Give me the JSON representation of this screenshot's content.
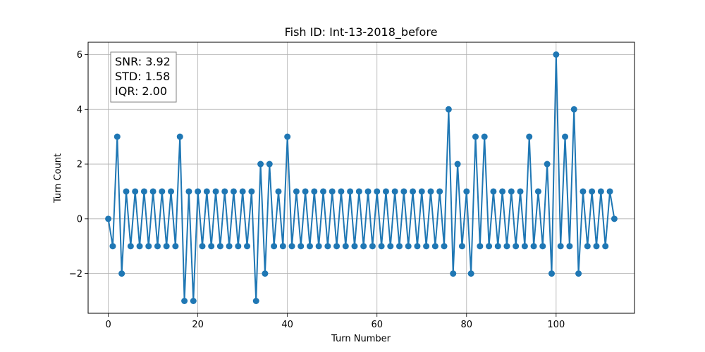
{
  "chart_data": {
    "type": "line",
    "title": "Fish ID: Int-13-2018_before",
    "xlabel": "Turn Number",
    "ylabel": "Turn Count",
    "xlim": [
      -4.5,
      117.5
    ],
    "ylim": [
      -3.45,
      6.45
    ],
    "xticks": [
      0,
      20,
      40,
      60,
      80,
      100
    ],
    "yticks": [
      -2,
      0,
      2,
      4,
      6
    ],
    "xtick_labels": [
      "0",
      "20",
      "40",
      "60",
      "80",
      "100"
    ],
    "ytick_labels": [
      "−2",
      "0",
      "2",
      "4",
      "6"
    ],
    "grid": true,
    "marker": "circle",
    "color": "#1f77b4",
    "series": [
      {
        "x": [
          0,
          1,
          2,
          3,
          4,
          5,
          6,
          7,
          8,
          9,
          10,
          11,
          12,
          13,
          14,
          15,
          16,
          17,
          18,
          19,
          20,
          21,
          22,
          23,
          24,
          25,
          26,
          27,
          28,
          29,
          30,
          31,
          32,
          33,
          34,
          35,
          36,
          37,
          38,
          39,
          40,
          41,
          42,
          43,
          44,
          45,
          46,
          47,
          48,
          49,
          50,
          51,
          52,
          53,
          54,
          55,
          56,
          57,
          58,
          59,
          60,
          61,
          62,
          63,
          64,
          65,
          66,
          67,
          68,
          69,
          70,
          71,
          72,
          73,
          74,
          75,
          76,
          77,
          78,
          79,
          80,
          81,
          82,
          83,
          84,
          85,
          86,
          87,
          88,
          89,
          90,
          91,
          92,
          93,
          94,
          95,
          96,
          97,
          98,
          99,
          100,
          101,
          102,
          103,
          104,
          105,
          106,
          107,
          108,
          109,
          110,
          111,
          112,
          113
        ],
        "y": [
          0,
          -1,
          3,
          -2,
          1,
          -1,
          1,
          -1,
          1,
          -1,
          1,
          -1,
          1,
          -1,
          1,
          -1,
          3,
          -3,
          1,
          -3,
          1,
          -1,
          1,
          -1,
          1,
          -1,
          1,
          -1,
          1,
          -1,
          1,
          -1,
          1,
          -3,
          2,
          -2,
          2,
          -1,
          1,
          -1,
          3,
          -1,
          1,
          -1,
          1,
          -1,
          1,
          -1,
          1,
          -1,
          1,
          -1,
          1,
          -1,
          1,
          -1,
          1,
          -1,
          1,
          -1,
          1,
          -1,
          1,
          -1,
          1,
          -1,
          1,
          -1,
          1,
          -1,
          1,
          -1,
          1,
          -1,
          1,
          -1,
          4,
          -2,
          2,
          -1,
          1,
          -2,
          3,
          -1,
          3,
          -1,
          1,
          -1,
          1,
          -1,
          1,
          -1,
          1,
          -1,
          3,
          -1,
          1,
          -1,
          2,
          -2,
          6,
          -1,
          3,
          -1,
          4,
          -2,
          1,
          -1,
          1,
          -1,
          1,
          -1,
          1,
          0
        ]
      }
    ],
    "annotation": {
      "placement": "top-left",
      "lines": [
        "SNR: 3.92",
        "STD: 1.58",
        "IQR: 2.00"
      ]
    }
  }
}
